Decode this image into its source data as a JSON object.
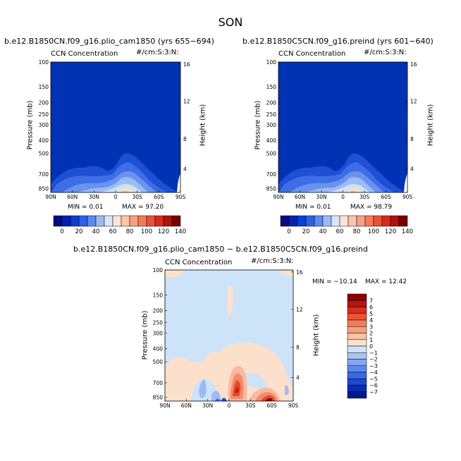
{
  "page_title": "SON",
  "colors": {
    "deep_blue": "#0033b3",
    "light_blue": "#cde3f7",
    "peach": "#fbe0cc",
    "dark_red": "#8c0000"
  },
  "chart_data": [
    {
      "type": "heatmap",
      "title": "b.e12.B1850CN.f09_g16.plio_cam1850 (yrs 655−694)",
      "variable_label": "CCN Concentration",
      "units_label": "#/cm:S:3:N:",
      "ylabel": "Pressure (mb)",
      "y2label": "Height (km)",
      "x_ticks": [
        "90N",
        "60N",
        "30N",
        "0",
        "30S",
        "60S",
        "90S"
      ],
      "y_ticks": [
        "100",
        "150",
        "200",
        "250",
        "300",
        "400",
        "500",
        "700",
        "850"
      ],
      "y2_ticks": [
        "16",
        "12",
        "8",
        "4"
      ],
      "min_text": "MIN =     0.01",
      "max_text": "MAX =   97.20",
      "min": 0.01,
      "max": 97.2,
      "colorbar_labels": [
        "0",
        "20",
        "40",
        "60",
        "80",
        "100",
        "120",
        "140"
      ]
    },
    {
      "type": "heatmap",
      "title": "b.e12.B1850C5CN.f09_g16.preind (yrs 601−640)",
      "variable_label": "CCN Concentration",
      "units_label": "#/cm:S:3:N:",
      "ylabel": "Pressure (mb)",
      "y2label": "Height (km)",
      "x_ticks": [
        "90N",
        "60N",
        "30N",
        "0",
        "30S",
        "60S",
        "90S"
      ],
      "y_ticks": [
        "100",
        "150",
        "200",
        "250",
        "300",
        "400",
        "500",
        "700",
        "850"
      ],
      "y2_ticks": [
        "16",
        "12",
        "8",
        "4"
      ],
      "min_text": "MIN =     0.01",
      "max_text": "MAX =   98.79",
      "min": 0.01,
      "max": 98.79,
      "colorbar_labels": [
        "0",
        "20",
        "40",
        "60",
        "80",
        "100",
        "120",
        "140"
      ]
    },
    {
      "type": "heatmap",
      "title": "b.e12.B1850CN.f09_g16.plio_cam1850 − b.e12.B1850C5CN.f09_g16.preind",
      "variable_label": "CCN Concentration",
      "units_label": "#/cm:S:3:N:",
      "ylabel": "Pressure (mb)",
      "y2label": "Height (km)",
      "x_ticks": [
        "90N",
        "60N",
        "30N",
        "0",
        "30S",
        "60S",
        "90S"
      ],
      "y_ticks": [
        "100",
        "150",
        "200",
        "250",
        "300",
        "400",
        "500",
        "700",
        "850"
      ],
      "y2_ticks": [
        "16",
        "12",
        "8",
        "4"
      ],
      "min_text": "MIN = −10.14",
      "max_text": "MAX =   12.42",
      "min": -10.14,
      "max": 12.42,
      "colorbar_labels": [
        "7",
        "6",
        "5",
        "4",
        "3",
        "2",
        "1",
        "0",
        "−1",
        "−2",
        "−3",
        "−4",
        "−5",
        "−6",
        "−7"
      ]
    }
  ]
}
